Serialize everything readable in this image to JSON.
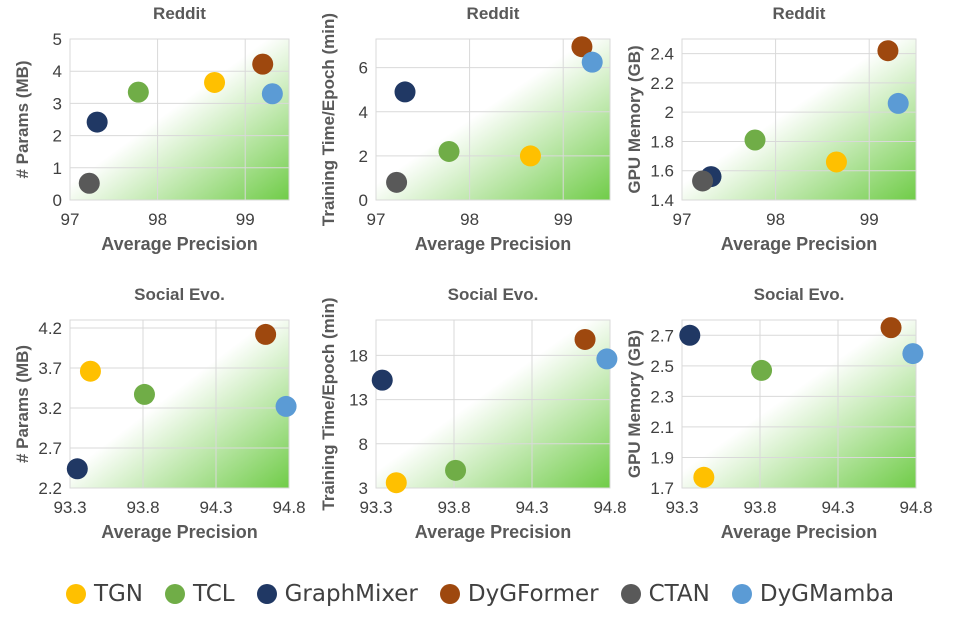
{
  "colors": {
    "TGN": "#FFC000",
    "TCL": "#70AD47",
    "GraphMixer": "#203864",
    "DyGFormer": "#9E480E",
    "CTAN": "#595959",
    "DyGMamba": "#5B9BD5",
    "gradient_end": "#70CC48",
    "grid": "#d9d9d9",
    "text": "#404040"
  },
  "legend": [
    {
      "label": "TGN",
      "icon": "circle-marker"
    },
    {
      "label": "TCL",
      "icon": "circle-marker"
    },
    {
      "label": "GraphMixer",
      "icon": "circle-marker"
    },
    {
      "label": "DyGFormer",
      "icon": "circle-marker"
    },
    {
      "label": "CTAN",
      "icon": "circle-marker"
    },
    {
      "label": "DyGMamba",
      "icon": "circle-marker"
    }
  ],
  "chart_data": [
    {
      "type": "scatter",
      "title": "Reddit",
      "xlabel": "Average Precision",
      "ylabel": "# Params (MB)",
      "xlim": [
        97,
        99.5
      ],
      "ylim": [
        0,
        5
      ],
      "xticks": [
        "97",
        "98",
        "99"
      ],
      "yticks": [
        "0",
        "1",
        "2",
        "3",
        "4",
        "5"
      ],
      "series": [
        {
          "name": "TGN",
          "x": 98.65,
          "y": 3.65
        },
        {
          "name": "TCL",
          "x": 97.78,
          "y": 3.35
        },
        {
          "name": "GraphMixer",
          "x": 97.31,
          "y": 2.42
        },
        {
          "name": "DyGFormer",
          "x": 99.2,
          "y": 4.22
        },
        {
          "name": "CTAN",
          "x": 97.22,
          "y": 0.52
        },
        {
          "name": "DyGMamba",
          "x": 99.31,
          "y": 3.3
        }
      ]
    },
    {
      "type": "scatter",
      "title": "Reddit",
      "xlabel": "Average Precision",
      "ylabel": "Training Time/Epoch (min)",
      "xlim": [
        97,
        99.5
      ],
      "ylim": [
        0,
        7.3
      ],
      "xticks": [
        "97",
        "98",
        "99"
      ],
      "yticks": [
        "0",
        "2",
        "4",
        "6"
      ],
      "series": [
        {
          "name": "TGN",
          "x": 98.65,
          "y": 2.0
        },
        {
          "name": "TCL",
          "x": 97.78,
          "y": 2.2
        },
        {
          "name": "GraphMixer",
          "x": 97.31,
          "y": 4.9
        },
        {
          "name": "DyGFormer",
          "x": 99.2,
          "y": 6.95
        },
        {
          "name": "CTAN",
          "x": 97.22,
          "y": 0.8
        },
        {
          "name": "DyGMamba",
          "x": 99.31,
          "y": 6.25
        }
      ]
    },
    {
      "type": "scatter",
      "title": "Reddit",
      "xlabel": "Average Precision",
      "ylabel": "GPU Memory (GB)",
      "xlim": [
        97,
        99.5
      ],
      "ylim": [
        1.4,
        2.5
      ],
      "xticks": [
        "97",
        "98",
        "99"
      ],
      "yticks": [
        "1.4",
        "1.6",
        "1.8",
        "2",
        "2.2",
        "2.4"
      ],
      "series": [
        {
          "name": "TGN",
          "x": 98.65,
          "y": 1.66
        },
        {
          "name": "TCL",
          "x": 97.78,
          "y": 1.81
        },
        {
          "name": "GraphMixer",
          "x": 97.31,
          "y": 1.56
        },
        {
          "name": "DyGFormer",
          "x": 99.2,
          "y": 2.42
        },
        {
          "name": "CTAN",
          "x": 97.22,
          "y": 1.53
        },
        {
          "name": "DyGMamba",
          "x": 99.31,
          "y": 2.06
        }
      ]
    },
    {
      "type": "scatter",
      "title": "Social Evo.",
      "xlabel": "Average Precision",
      "ylabel": "# Params (MB)",
      "xlim": [
        93.3,
        94.8
      ],
      "ylim": [
        2.2,
        4.3
      ],
      "xticks": [
        "93.3",
        "93.8",
        "94.3",
        "94.8"
      ],
      "yticks": [
        "2.2",
        "2.7",
        "3.2",
        "3.7",
        "4.2"
      ],
      "series": [
        {
          "name": "TGN",
          "x": 93.44,
          "y": 3.66
        },
        {
          "name": "TCL",
          "x": 93.81,
          "y": 3.37
        },
        {
          "name": "GraphMixer",
          "x": 93.35,
          "y": 2.44
        },
        {
          "name": "DyGFormer",
          "x": 94.64,
          "y": 4.12
        },
        {
          "name": "DyGMamba",
          "x": 94.78,
          "y": 3.22
        }
      ]
    },
    {
      "type": "scatter",
      "title": "Social Evo.",
      "xlabel": "Average Precision",
      "ylabel": "Training Time/Epoch (min)",
      "xlim": [
        93.3,
        94.8
      ],
      "ylim": [
        3,
        22
      ],
      "xticks": [
        "93.3",
        "93.8",
        "94.3",
        "94.8"
      ],
      "yticks": [
        "3",
        "8",
        "13",
        "18"
      ],
      "series": [
        {
          "name": "TGN",
          "x": 93.43,
          "y": 3.6
        },
        {
          "name": "TCL",
          "x": 93.81,
          "y": 5.0
        },
        {
          "name": "GraphMixer",
          "x": 93.34,
          "y": 15.2
        },
        {
          "name": "DyGFormer",
          "x": 94.64,
          "y": 19.8
        },
        {
          "name": "DyGMamba",
          "x": 94.78,
          "y": 17.6
        }
      ]
    },
    {
      "type": "scatter",
      "title": "Social Evo.",
      "xlabel": "Average Precision",
      "ylabel": "GPU Memory (GB)",
      "xlim": [
        93.3,
        94.8
      ],
      "ylim": [
        1.7,
        2.8
      ],
      "xticks": [
        "93.3",
        "93.8",
        "94.3",
        "94.8"
      ],
      "yticks": [
        "1.7",
        "1.9",
        "2.1",
        "2.3",
        "2.5",
        "2.7"
      ],
      "series": [
        {
          "name": "TGN",
          "x": 93.44,
          "y": 1.77
        },
        {
          "name": "TCL",
          "x": 93.81,
          "y": 2.47
        },
        {
          "name": "GraphMixer",
          "x": 93.35,
          "y": 2.7
        },
        {
          "name": "DyGFormer",
          "x": 94.64,
          "y": 2.75
        },
        {
          "name": "DyGMamba",
          "x": 94.78,
          "y": 2.58
        }
      ]
    }
  ]
}
